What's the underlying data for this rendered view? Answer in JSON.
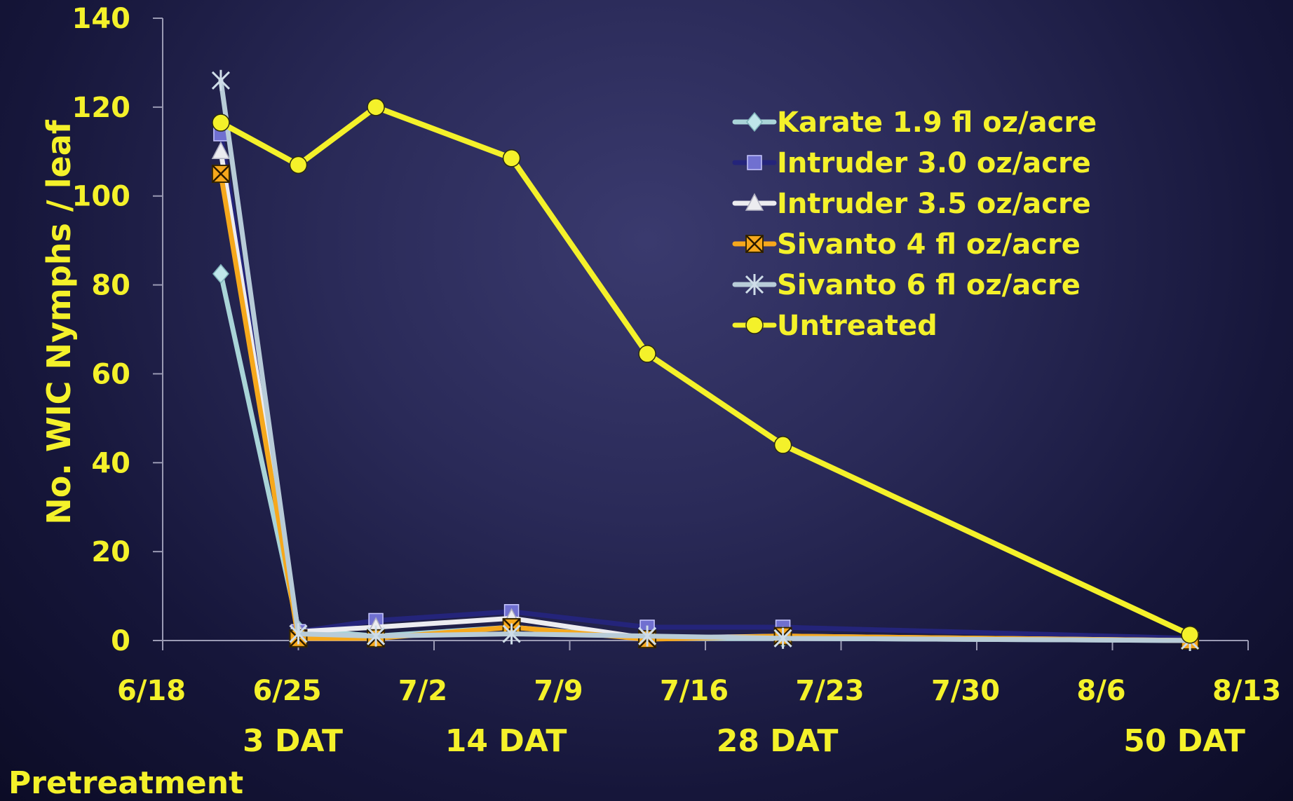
{
  "chart_data": {
    "type": "line",
    "ylabel": "No. WIC Nymphs / leaf",
    "xlabel": "",
    "ylim": [
      0,
      140
    ],
    "y_ticks": [
      "0",
      "20",
      "40",
      "60",
      "80",
      "100",
      "120",
      "140"
    ],
    "x_ticks": [
      "6/18",
      "6/25",
      "7/2",
      "7/9",
      "7/16",
      "7/23",
      "7/30",
      "8/6",
      "8/13"
    ],
    "x_tick_days": [
      0,
      7,
      14,
      21,
      28,
      35,
      42,
      49,
      56
    ],
    "x_days": [
      3,
      7,
      11,
      18,
      25,
      32,
      53
    ],
    "annotations": [
      {
        "text": "Pretreatment",
        "day": 3
      },
      {
        "text": "3 DAT",
        "day": 7
      },
      {
        "text": "14 DAT",
        "day": 18
      },
      {
        "text": "28 DAT",
        "day": 32
      },
      {
        "text": "50 DAT",
        "day": 53
      }
    ],
    "legend_position": "upper-right",
    "series": [
      {
        "name": "Karate 1.9 fl oz/acre",
        "color": "#a9d4d8",
        "marker": "diamond",
        "values": [
          82.5,
          2.5,
          1,
          3,
          0.5,
          0.5,
          0
        ]
      },
      {
        "name": "Intruder 3.0 oz/acre",
        "color": "#24247a",
        "marker": "square",
        "values": [
          114,
          2,
          4.5,
          6.5,
          3,
          3,
          0.5
        ]
      },
      {
        "name": "Intruder 3.5 oz/acre",
        "color": "#ececf0",
        "marker": "triangle",
        "values": [
          110,
          2,
          3,
          5,
          0.5,
          1,
          0
        ]
      },
      {
        "name": "Sivanto 4 fl oz/acre",
        "color": "#f6a81c",
        "marker": "xbox",
        "values": [
          105,
          0.5,
          0.5,
          3,
          0.3,
          1,
          0
        ]
      },
      {
        "name": "Sivanto 6 fl oz/acre",
        "color": "#b8ccd8",
        "marker": "star",
        "values": [
          126,
          1.5,
          1,
          1.5,
          1,
          0.5,
          0
        ]
      },
      {
        "name": "Untreated",
        "color": "#f4f12a",
        "marker": "circle",
        "values": [
          116.5,
          107,
          120,
          108.5,
          64.5,
          44,
          1.3
        ]
      }
    ]
  }
}
